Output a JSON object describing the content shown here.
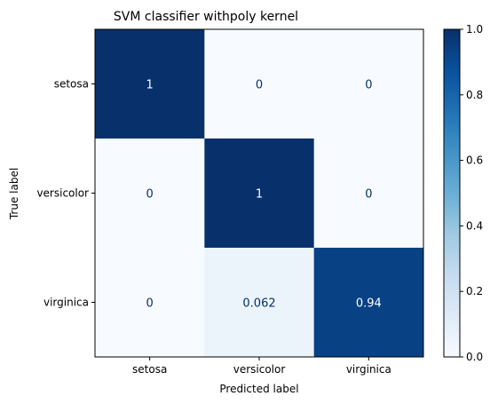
{
  "chart_data": {
    "type": "heatmap",
    "title": "SVM classifier withpoly kernel",
    "xlabel": "Predicted label",
    "ylabel": "True label",
    "x_categories": [
      "setosa",
      "versicolor",
      "virginica"
    ],
    "y_categories": [
      "setosa",
      "versicolor",
      "virginica"
    ],
    "matrix": [
      [
        1,
        0,
        0
      ],
      [
        0,
        1,
        0
      ],
      [
        0,
        0.0625,
        0.9375
      ]
    ],
    "cell_labels": [
      [
        "1",
        "0",
        "0"
      ],
      [
        "0",
        "1",
        "0"
      ],
      [
        "0",
        "0.062",
        "0.94"
      ]
    ],
    "colormap": "Blues",
    "colorbar": {
      "range": [
        0.0,
        1.0
      ],
      "ticks": [
        "0.0",
        "0.2",
        "0.4",
        "0.6",
        "0.8",
        "1.0"
      ]
    },
    "colors": {
      "dark_text": "#08306b",
      "light_text": "#ffffff"
    }
  }
}
